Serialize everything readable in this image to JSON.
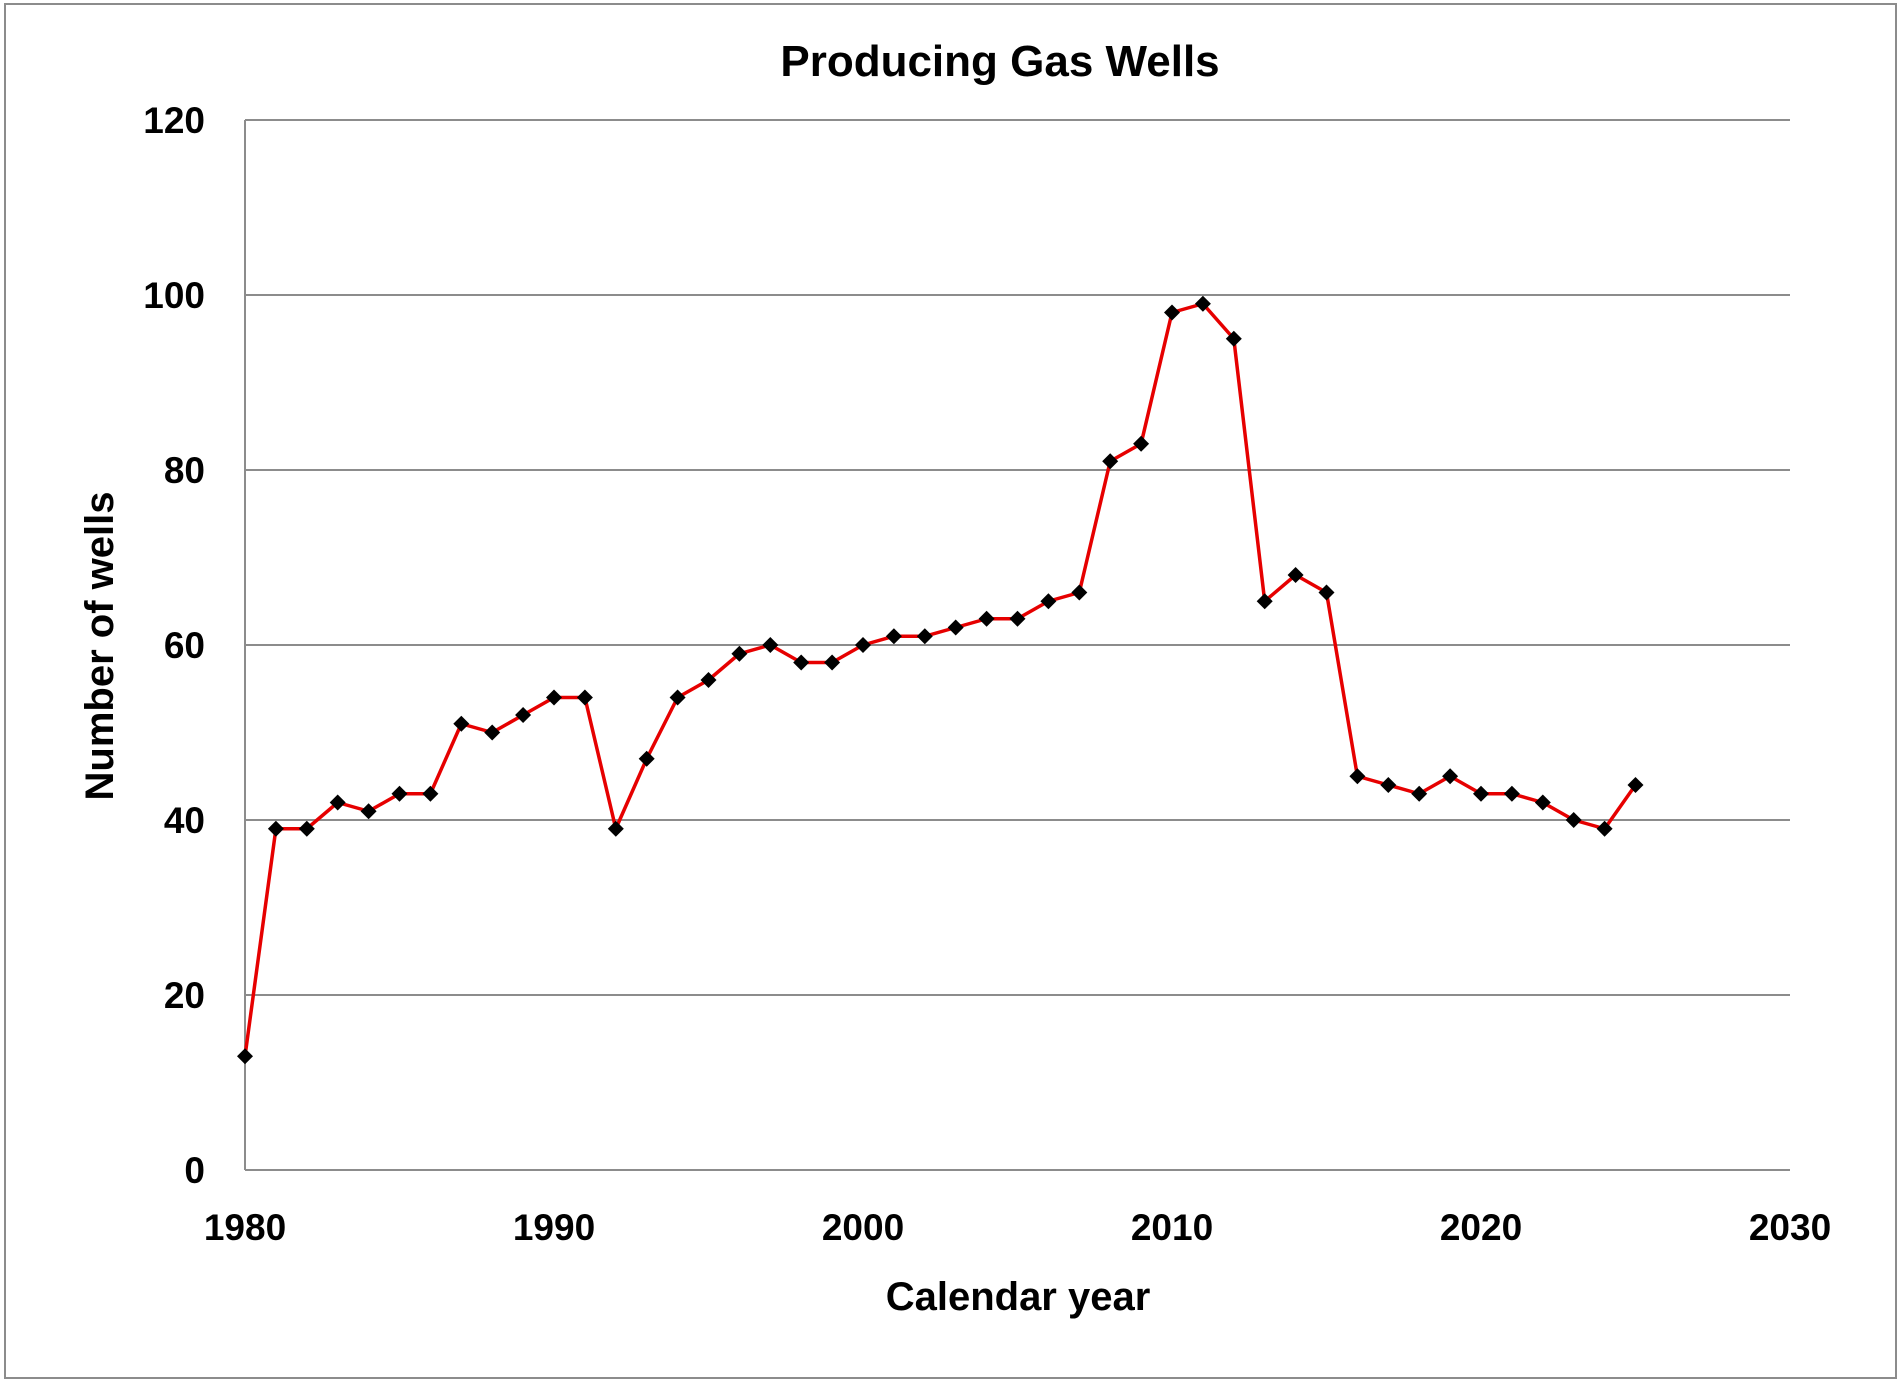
{
  "chart_data": {
    "type": "line",
    "title": "Producing Gas Wells",
    "xlabel": "Calendar year",
    "ylabel": "Number of wells",
    "xlim": [
      1980,
      2030
    ],
    "ylim": [
      0,
      120
    ],
    "x_ticks": [
      "1980",
      "1990",
      "2000",
      "2010",
      "2020",
      "2030"
    ],
    "y_ticks": [
      "0",
      "20",
      "40",
      "60",
      "80",
      "100",
      "120"
    ],
    "grid": true,
    "legend": "none",
    "colors": {
      "line": "#e60000",
      "marker": "#000000",
      "grid": "#8c8c8c"
    },
    "marker": "diamond",
    "series": [
      {
        "x": [
          1980,
          1981,
          1982,
          1983,
          1984,
          1985,
          1986,
          1987,
          1988,
          1989,
          1990,
          1991,
          1992,
          1993,
          1994,
          1995,
          1996,
          1997,
          1998,
          1999,
          2000,
          2001,
          2002,
          2003,
          2004,
          2005,
          2006,
          2007,
          2008,
          2009,
          2010,
          2011,
          2012,
          2013,
          2014,
          2015,
          2016,
          2017,
          2018,
          2019,
          2020,
          2021,
          2022,
          2023,
          2024,
          2025
        ],
        "y": [
          13,
          39,
          39,
          42,
          41,
          43,
          43,
          51,
          50,
          52,
          54,
          54,
          39,
          47,
          54,
          56,
          59,
          60,
          58,
          58,
          60,
          61,
          61,
          62,
          63,
          63,
          65,
          66,
          81,
          83,
          98,
          99,
          95,
          65,
          68,
          66,
          45,
          44,
          43,
          45,
          43,
          43,
          42,
          40,
          39,
          44
        ]
      }
    ]
  }
}
